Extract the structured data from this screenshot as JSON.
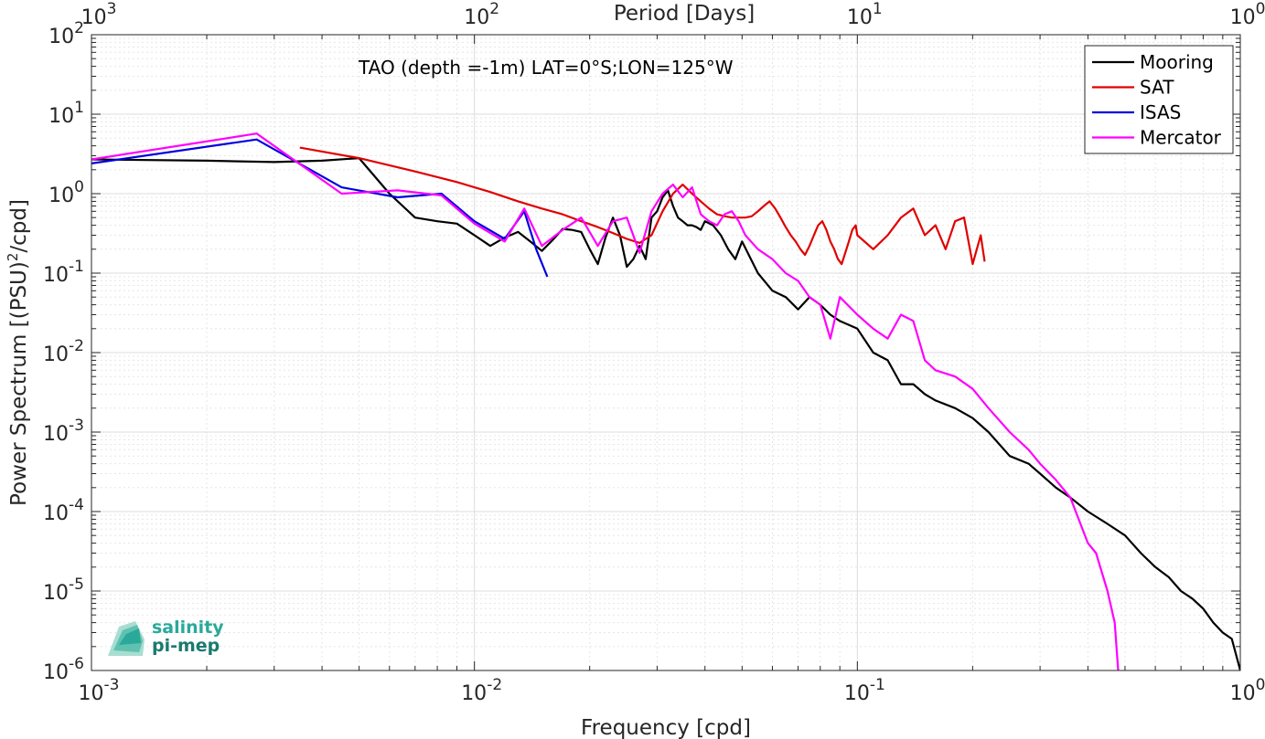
{
  "chart_data": {
    "type": "line",
    "title": "",
    "annotation": "TAO (depth =-1m) LAT=0°S;LON=125°W",
    "xlabel": "Frequency [cpd]",
    "ylabel_prefix": "Power Spectrum [(PSU)",
    "ylabel_sup": "2",
    "ylabel_suffix": "/cpd]",
    "x2label": "Period [Days]",
    "x_scale": "log",
    "y_scale": "log",
    "xlim": [
      0.001,
      1
    ],
    "ylim": [
      1e-06,
      100
    ],
    "grid": true,
    "legend_position": "top-right",
    "x_ticks": [
      {
        "base": "10",
        "exp": "-3"
      },
      {
        "base": "10",
        "exp": "-2"
      },
      {
        "base": "10",
        "exp": "-1"
      },
      {
        "base": "10",
        "exp": "0"
      }
    ],
    "y_ticks": [
      {
        "base": "10",
        "exp": "-6"
      },
      {
        "base": "10",
        "exp": "-5"
      },
      {
        "base": "10",
        "exp": "-4"
      },
      {
        "base": "10",
        "exp": "-3"
      },
      {
        "base": "10",
        "exp": "-2"
      },
      {
        "base": "10",
        "exp": "-1"
      },
      {
        "base": "10",
        "exp": "0"
      },
      {
        "base": "10",
        "exp": "1"
      },
      {
        "base": "10",
        "exp": "2"
      }
    ],
    "x2_ticks": [
      {
        "base": "10",
        "exp": "3"
      },
      {
        "base": "10",
        "exp": "2"
      },
      {
        "base": "10",
        "exp": "1"
      },
      {
        "base": "10",
        "exp": "0"
      }
    ],
    "series": [
      {
        "name": "Mooring",
        "color": "#000000",
        "x": [
          0.001,
          0.002,
          0.003,
          0.004,
          0.005,
          0.006,
          0.007,
          0.008,
          0.009,
          0.01,
          0.011,
          0.012,
          0.013,
          0.014,
          0.015,
          0.016,
          0.017,
          0.018,
          0.019,
          0.02,
          0.021,
          0.022,
          0.023,
          0.024,
          0.025,
          0.026,
          0.027,
          0.028,
          0.029,
          0.03,
          0.031,
          0.032,
          0.033,
          0.034,
          0.035,
          0.036,
          0.037,
          0.038,
          0.039,
          0.04,
          0.042,
          0.044,
          0.046,
          0.048,
          0.05,
          0.055,
          0.06,
          0.065,
          0.07,
          0.075,
          0.08,
          0.085,
          0.09,
          0.1,
          0.11,
          0.12,
          0.13,
          0.14,
          0.15,
          0.16,
          0.18,
          0.2,
          0.22,
          0.25,
          0.28,
          0.3,
          0.33,
          0.36,
          0.4,
          0.45,
          0.5,
          0.55,
          0.6,
          0.65,
          0.7,
          0.75,
          0.8,
          0.85,
          0.9,
          0.95,
          1.0
        ],
        "y": [
          2.7,
          2.6,
          2.5,
          2.6,
          2.8,
          1.0,
          0.5,
          0.45,
          0.42,
          0.3,
          0.22,
          0.28,
          0.33,
          0.25,
          0.19,
          0.26,
          0.36,
          0.35,
          0.33,
          0.2,
          0.13,
          0.28,
          0.5,
          0.3,
          0.12,
          0.15,
          0.22,
          0.15,
          0.5,
          0.6,
          0.9,
          1.1,
          0.7,
          0.5,
          0.45,
          0.4,
          0.4,
          0.38,
          0.35,
          0.45,
          0.4,
          0.3,
          0.2,
          0.15,
          0.25,
          0.1,
          0.06,
          0.05,
          0.035,
          0.05,
          0.04,
          0.03,
          0.025,
          0.02,
          0.01,
          0.008,
          0.004,
          0.004,
          0.003,
          0.0025,
          0.002,
          0.0015,
          0.001,
          0.0005,
          0.0004,
          0.0003,
          0.0002,
          0.00015,
          0.0001,
          7e-05,
          5e-05,
          3e-05,
          2e-05,
          1.5e-05,
          1e-05,
          8e-06,
          6e-06,
          4e-06,
          3e-06,
          2.5e-06,
          1e-06
        ]
      },
      {
        "name": "SAT",
        "color": "#e00000",
        "x": [
          0.0035,
          0.005,
          0.007,
          0.009,
          0.011,
          0.013,
          0.015,
          0.017,
          0.019,
          0.021,
          0.023,
          0.025,
          0.027,
          0.029,
          0.031,
          0.033,
          0.035,
          0.037,
          0.039,
          0.041,
          0.043,
          0.045,
          0.047,
          0.049,
          0.051,
          0.053,
          0.055,
          0.057,
          0.059,
          0.061,
          0.063,
          0.065,
          0.067,
          0.069,
          0.071,
          0.073,
          0.075,
          0.077,
          0.079,
          0.081,
          0.083,
          0.085,
          0.087,
          0.089,
          0.091,
          0.093,
          0.095,
          0.097,
          0.099,
          0.1,
          0.11,
          0.12,
          0.13,
          0.14,
          0.15,
          0.16,
          0.17,
          0.18,
          0.19,
          0.2,
          0.21,
          0.215
        ],
        "y": [
          3.8,
          2.8,
          1.9,
          1.4,
          1.05,
          0.8,
          0.65,
          0.55,
          0.45,
          0.38,
          0.32,
          0.27,
          0.24,
          0.3,
          0.6,
          1.0,
          1.3,
          1.0,
          0.8,
          0.65,
          0.55,
          0.52,
          0.5,
          0.5,
          0.5,
          0.52,
          0.6,
          0.7,
          0.8,
          0.65,
          0.5,
          0.38,
          0.3,
          0.25,
          0.2,
          0.17,
          0.22,
          0.3,
          0.4,
          0.45,
          0.35,
          0.25,
          0.2,
          0.15,
          0.13,
          0.18,
          0.25,
          0.35,
          0.4,
          0.3,
          0.2,
          0.3,
          0.5,
          0.65,
          0.3,
          0.4,
          0.2,
          0.45,
          0.5,
          0.13,
          0.3,
          0.14
        ]
      },
      {
        "name": "ISAS",
        "color": "#0000e0",
        "x": [
          0.001,
          0.0027,
          0.0045,
          0.0063,
          0.0082,
          0.01,
          0.012,
          0.0135,
          0.0145,
          0.0155
        ],
        "y": [
          2.4,
          4.8,
          1.2,
          0.9,
          1.0,
          0.45,
          0.27,
          0.6,
          0.2,
          0.09
        ]
      },
      {
        "name": "Mercator",
        "color": "#ff00ff",
        "x": [
          0.001,
          0.0027,
          0.0045,
          0.0063,
          0.0082,
          0.01,
          0.012,
          0.0135,
          0.015,
          0.017,
          0.019,
          0.021,
          0.023,
          0.025,
          0.027,
          0.029,
          0.031,
          0.033,
          0.035,
          0.037,
          0.039,
          0.041,
          0.043,
          0.045,
          0.047,
          0.049,
          0.051,
          0.055,
          0.06,
          0.065,
          0.07,
          0.075,
          0.08,
          0.085,
          0.09,
          0.1,
          0.11,
          0.12,
          0.13,
          0.14,
          0.15,
          0.16,
          0.18,
          0.2,
          0.22,
          0.25,
          0.28,
          0.3,
          0.33,
          0.36,
          0.4,
          0.42,
          0.45,
          0.47,
          0.48
        ],
        "y": [
          2.7,
          5.7,
          1.0,
          1.1,
          0.95,
          0.42,
          0.25,
          0.65,
          0.22,
          0.35,
          0.5,
          0.22,
          0.45,
          0.5,
          0.18,
          0.6,
          1.0,
          1.3,
          0.9,
          1.2,
          0.55,
          0.45,
          0.4,
          0.55,
          0.6,
          0.45,
          0.3,
          0.2,
          0.15,
          0.1,
          0.08,
          0.05,
          0.04,
          0.015,
          0.05,
          0.03,
          0.02,
          0.015,
          0.03,
          0.025,
          0.008,
          0.006,
          0.005,
          0.0035,
          0.002,
          0.001,
          0.0006,
          0.0004,
          0.00025,
          0.00015,
          4e-05,
          3e-05,
          1e-05,
          4e-06,
          1e-06
        ]
      }
    ]
  },
  "logo": {
    "line1": "salinity",
    "line2": "pi-mep",
    "color1": "#2aa99a",
    "color2": "#1a7a6e"
  }
}
